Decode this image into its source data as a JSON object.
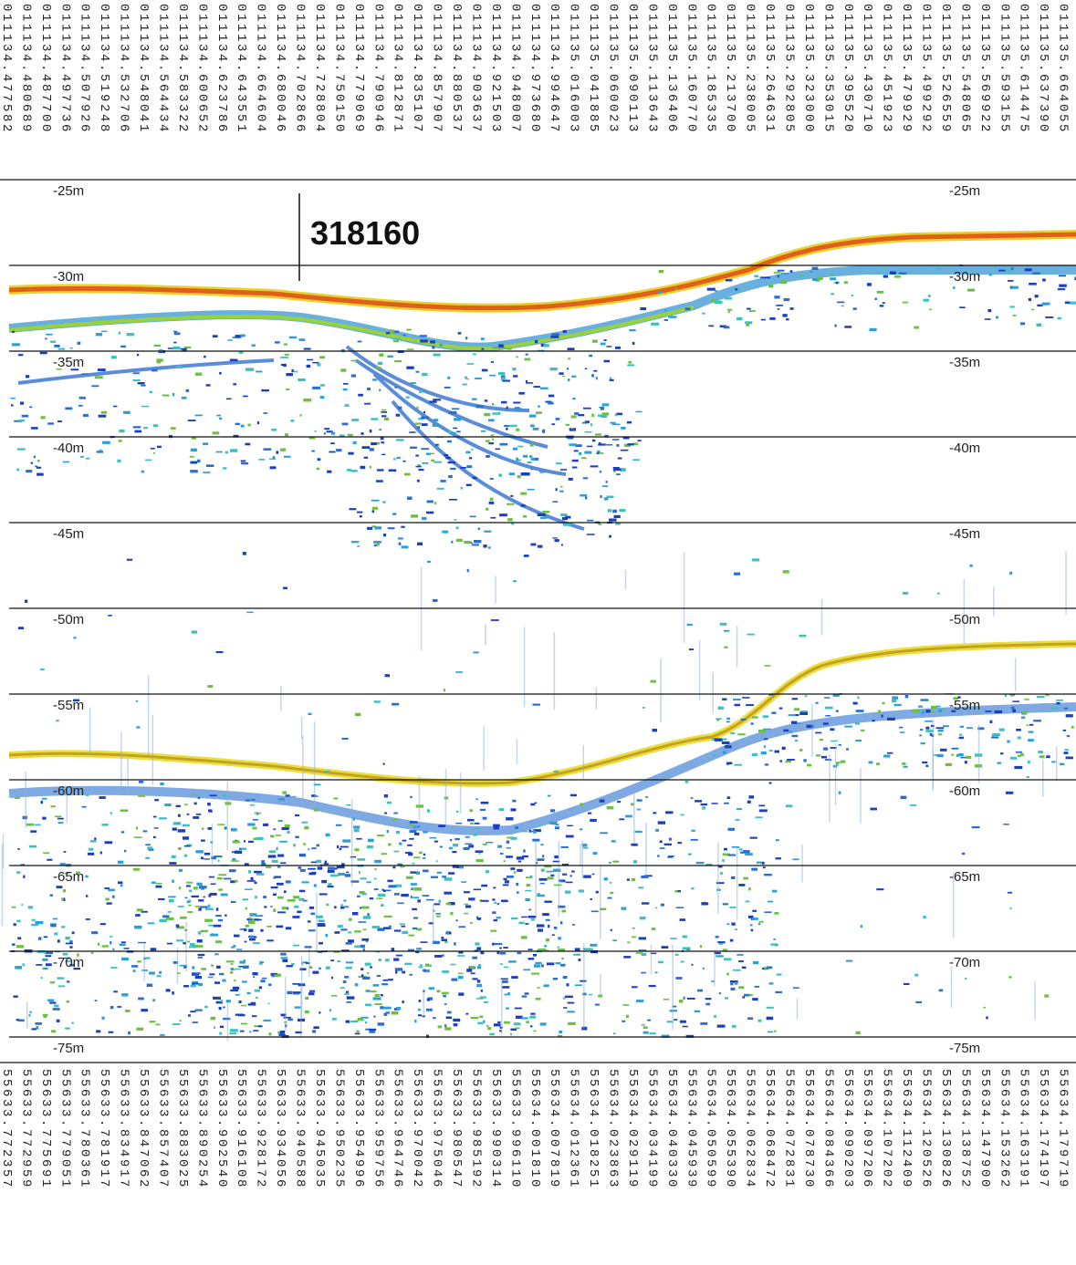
{
  "marker": "318160",
  "depth_labels_left": [
    "-25m",
    "-30m",
    "-35m",
    "-40m",
    "-45m",
    "-50m",
    "-55m",
    "-60m",
    "-65m",
    "-70m",
    "-75m"
  ],
  "depth_labels_right": [
    "-25m",
    "-30m",
    "-35m",
    "-40m",
    "-45m",
    "-50m",
    "-55m",
    "-60m",
    "-65m",
    "-70m",
    "-75m"
  ],
  "top_coordinates": [
    "011134.477582",
    "011134.480689",
    "011134.487700",
    "011134.497736",
    "011134.507926",
    "011134.519248",
    "011134.532706",
    "011134.548041",
    "011134.564434",
    "011134.583322",
    "011134.600652",
    "011134.623786",
    "011134.643551",
    "011134.664604",
    "011134.680046",
    "011134.702866",
    "011134.728804",
    "011134.750150",
    "011134.779069",
    "011134.790946",
    "011134.812871",
    "011134.835107",
    "011134.857907",
    "011134.880537",
    "011134.903637",
    "011134.921503",
    "011134.948007",
    "011134.973680",
    "011134.994647",
    "011135.016003",
    "011135.041885",
    "011135.060023",
    "011135.090113",
    "011135.113643",
    "011135.136406",
    "011135.160770",
    "011135.185335",
    "011135.213700",
    "011135.238005",
    "011135.264631",
    "011135.292805",
    "011135.323000",
    "011135.353015",
    "011135.395520",
    "011135.430710",
    "011135.451923",
    "011135.479929",
    "011135.499292",
    "011135.526559",
    "011135.548065",
    "011135.569922",
    "011135.593155",
    "011135.614475",
    "011135.637390",
    "011135.664055"
  ],
  "bottom_coordinates": [
    "55633.772357",
    "55633.772959",
    "55633.775691",
    "55633.779051",
    "55633.780361",
    "55633.781917",
    "55633.834917",
    "55633.847062",
    "55633.857407",
    "55633.883025",
    "55633.890254",
    "55633.902540",
    "55633.916108",
    "55633.928172",
    "55633.934056",
    "55633.940588",
    "55633.945035",
    "55633.950235",
    "55633.954996",
    "55633.959756",
    "55633.964746",
    "55633.970042",
    "55633.975046",
    "55633.980547",
    "55633.985192",
    "55633.990314",
    "55633.996110",
    "55634.001810",
    "55634.007819",
    "55634.012361",
    "55634.018251",
    "55634.023863",
    "55634.029119",
    "55634.034199",
    "55634.040330",
    "55634.045939",
    "55634.050599",
    "55634.055390",
    "55634.062834",
    "55634.068472",
    "55634.072831",
    "55634.078730",
    "55634.084366",
    "55634.090203",
    "55634.097206",
    "55634.107202",
    "55634.112409",
    "55634.120526",
    "55634.130826",
    "55634.138752",
    "55634.147900",
    "55634.153262",
    "55634.163191",
    "55634.174197",
    "55634.179719"
  ]
}
